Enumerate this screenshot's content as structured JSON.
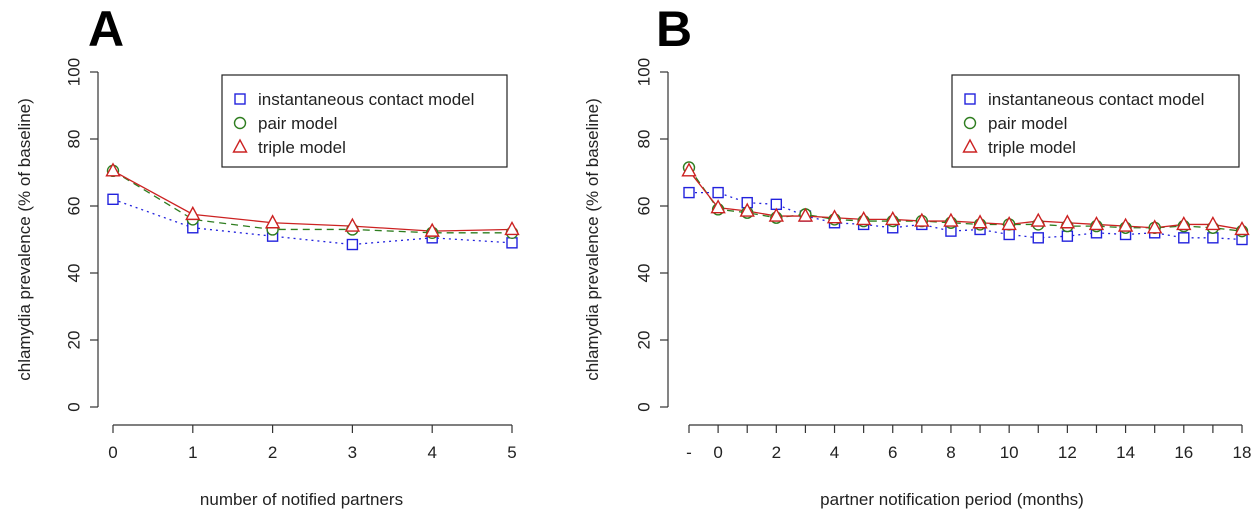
{
  "chart_data": [
    {
      "type": "line",
      "panel_label": "A",
      "xlabel": "number of notified partners",
      "ylabel": "chlamydia prevalence (% of baseline)",
      "title": "",
      "ylim": [
        0,
        100
      ],
      "yticks": [
        0,
        20,
        40,
        60,
        80,
        100
      ],
      "x_tick_labels": [
        "0",
        "1",
        "2",
        "3",
        "4",
        "5"
      ],
      "categories": [
        "0",
        "1",
        "2",
        "3",
        "4",
        "5"
      ],
      "legend_position": "top-right",
      "grid": false,
      "series": [
        {
          "name": "instantaneous contact model",
          "marker": "square",
          "line": "dotted",
          "color": "#2222dd",
          "values": [
            62,
            53.5,
            51,
            48.5,
            50.5,
            49
          ]
        },
        {
          "name": "pair model",
          "marker": "circle",
          "line": "dashed",
          "color": "#2e7d1f",
          "values": [
            70.5,
            56,
            53,
            53,
            52,
            52
          ]
        },
        {
          "name": "triple model",
          "marker": "triangle",
          "line": "solid",
          "color": "#cc2222",
          "values": [
            70.5,
            57.5,
            55,
            54,
            52.5,
            53
          ]
        }
      ]
    },
    {
      "type": "line",
      "panel_label": "B",
      "xlabel": "partner notification period (months)",
      "ylabel": "chlamydia prevalence (% of baseline)",
      "title": "",
      "ylim": [
        0,
        100
      ],
      "yticks": [
        0,
        20,
        40,
        60,
        80,
        100
      ],
      "x_tick_labels": [
        "-",
        "0",
        "2",
        "4",
        "6",
        "8",
        "10",
        "12",
        "14",
        "16",
        "18"
      ],
      "categories": [
        "-",
        "0",
        "1",
        "2",
        "3",
        "4",
        "5",
        "6",
        "7",
        "8",
        "9",
        "10",
        "11",
        "12",
        "13",
        "14",
        "15",
        "16",
        "17",
        "18"
      ],
      "legend_position": "top-right",
      "grid": false,
      "series": [
        {
          "name": "instantaneous contact model",
          "marker": "square",
          "line": "dotted",
          "color": "#2222dd",
          "values": [
            64,
            64,
            61,
            60.5,
            57,
            55,
            54.5,
            53.5,
            54.5,
            52.5,
            53,
            51.5,
            50.5,
            51,
            52,
            51.5,
            52,
            50.5,
            50.5,
            50
          ]
        },
        {
          "name": "pair model",
          "marker": "circle",
          "line": "dashed",
          "color": "#2e7d1f",
          "values": [
            71.5,
            59,
            58,
            56.5,
            57.5,
            56,
            55.5,
            55.5,
            55.5,
            55,
            54.5,
            54.5,
            54.5,
            54,
            54,
            53.5,
            53.5,
            54,
            53.5,
            52.5
          ]
        },
        {
          "name": "triple model",
          "marker": "triangle",
          "line": "solid",
          "color": "#cc2222",
          "values": [
            70.5,
            59.5,
            58.5,
            57,
            57,
            56.5,
            56,
            56,
            55.5,
            55.5,
            55,
            54.5,
            55.5,
            55,
            54.5,
            54,
            53.5,
            54.5,
            54.5,
            53
          ]
        }
      ]
    }
  ]
}
